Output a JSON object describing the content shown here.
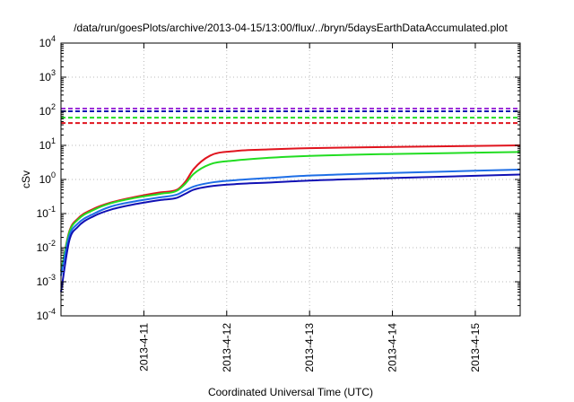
{
  "chart_data": {
    "type": "line",
    "title": "/data/run/goesPlots/archive/2013-04-15/13:00/flux/../bryn/5daysEarthDataAccumulated.plot",
    "xlabel": "Coordinated Universal Time (UTC)",
    "ylabel": "cSv",
    "yscale": "log",
    "ylim": [
      0.0001,
      10000
    ],
    "xlim": [
      "2013-04-10 00:00",
      "2013-04-15 13:00"
    ],
    "grid": true,
    "x_ticks": [
      "2013-4-11",
      "2013-4-12",
      "2013-4-13",
      "2013-4-14",
      "2013-4-15"
    ],
    "y_ticks": [
      {
        "base": "10",
        "exp": "-4"
      },
      {
        "base": "10",
        "exp": "-3"
      },
      {
        "base": "10",
        "exp": "-2"
      },
      {
        "base": "10",
        "exp": "-1"
      },
      {
        "base": "10",
        "exp": "0"
      },
      {
        "base": "10",
        "exp": "1"
      },
      {
        "base": "10",
        "exp": "2"
      },
      {
        "base": "10",
        "exp": "3"
      },
      {
        "base": "10",
        "exp": "4"
      }
    ],
    "series": [
      {
        "color": "#e0141e",
        "x": [
          "2013-04-10 00:00",
          "2013-04-10 02:24",
          "2013-04-10 04:48",
          "2013-04-10 09:36",
          "2013-04-10 14:24",
          "2013-04-10 21:36",
          "2013-04-11 04:48",
          "2013-04-11 09:36",
          "2013-04-11 12:00",
          "2013-04-11 14:24",
          "2013-04-11 19:12",
          "2013-04-12 02:24",
          "2013-04-12 12:00",
          "2013-04-13 00:00",
          "2013-04-14 00:00",
          "2013-04-15 00:00",
          "2013-04-15 13:00"
        ],
        "values": [
          0.002,
          0.03,
          0.07,
          0.14,
          0.21,
          0.31,
          0.42,
          0.5,
          0.85,
          2.0,
          5.0,
          6.8,
          7.6,
          8.3,
          9.0,
          9.6,
          10.0
        ]
      },
      {
        "color": "#22dd22",
        "x": [
          "2013-04-10 00:00",
          "2013-04-10 02:24",
          "2013-04-10 04:48",
          "2013-04-10 09:36",
          "2013-04-10 14:24",
          "2013-04-10 21:36",
          "2013-04-11 04:48",
          "2013-04-11 09:36",
          "2013-04-11 12:00",
          "2013-04-11 14:24",
          "2013-04-11 19:12",
          "2013-04-12 02:24",
          "2013-04-12 12:00",
          "2013-04-13 00:00",
          "2013-04-14 00:00",
          "2013-04-15 00:00",
          "2013-04-15 13:00"
        ],
        "values": [
          0.002,
          0.028,
          0.065,
          0.13,
          0.2,
          0.29,
          0.38,
          0.47,
          0.75,
          1.45,
          2.8,
          3.6,
          4.3,
          4.9,
          5.6,
          6.1,
          6.4
        ]
      },
      {
        "color": "#1e6ee6",
        "x": [
          "2013-04-10 00:00",
          "2013-04-10 02:24",
          "2013-04-10 04:48",
          "2013-04-10 09:36",
          "2013-04-10 14:24",
          "2013-04-10 21:36",
          "2013-04-11 04:48",
          "2013-04-11 09:36",
          "2013-04-11 12:00",
          "2013-04-11 14:24",
          "2013-04-11 19:12",
          "2013-04-12 02:24",
          "2013-04-12 12:00",
          "2013-04-13 00:00",
          "2013-04-14 00:00",
          "2013-04-15 00:00",
          "2013-04-15 13:00"
        ],
        "values": [
          0.0015,
          0.022,
          0.05,
          0.1,
          0.16,
          0.23,
          0.3,
          0.36,
          0.48,
          0.62,
          0.8,
          0.95,
          1.1,
          1.3,
          1.55,
          1.8,
          1.95
        ]
      },
      {
        "color": "#1010b4",
        "x": [
          "2013-04-10 00:00",
          "2013-04-10 02:24",
          "2013-04-10 04:48",
          "2013-04-10 09:36",
          "2013-04-10 14:24",
          "2013-04-10 21:36",
          "2013-04-11 04:48",
          "2013-04-11 09:36",
          "2013-04-11 12:00",
          "2013-04-11 14:24",
          "2013-04-11 19:12",
          "2013-04-12 02:24",
          "2013-04-12 12:00",
          "2013-04-13 00:00",
          "2013-04-14 00:00",
          "2013-04-15 00:00",
          "2013-04-15 13:00"
        ],
        "values": [
          0.0005,
          0.016,
          0.04,
          0.085,
          0.13,
          0.19,
          0.25,
          0.29,
          0.38,
          0.5,
          0.63,
          0.73,
          0.81,
          0.93,
          1.1,
          1.28,
          1.4
        ]
      }
    ],
    "reference_lines": [
      {
        "color": "#9b30d8",
        "value": 120,
        "style": "dashed"
      },
      {
        "color": "#1010b4",
        "value": 100,
        "style": "dashed"
      },
      {
        "color": "#22dd22",
        "value": 65,
        "style": "dashed"
      },
      {
        "color": "#e0141e",
        "value": 45,
        "style": "dashed"
      }
    ]
  }
}
